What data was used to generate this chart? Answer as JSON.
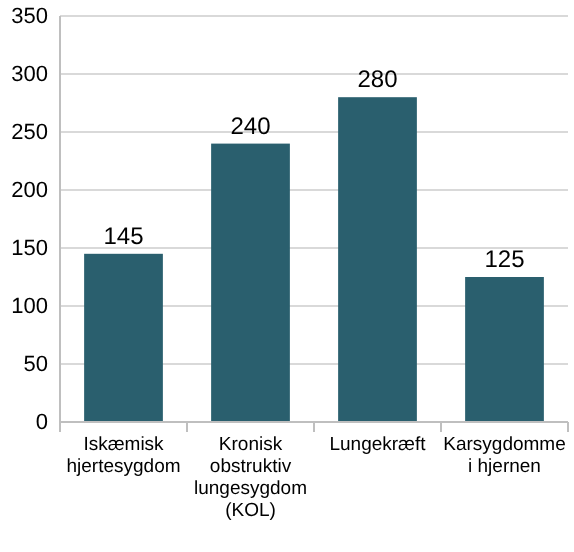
{
  "chart_data": {
    "type": "bar",
    "categories": [
      "Iskæmisk hjertesygdom",
      "Kronisk obstruktiv lungesygdom (KOL)",
      "Lungekræft",
      "Karsygdomme i hjernen"
    ],
    "values": [
      145,
      240,
      280,
      125
    ],
    "color": "#2a5f6e",
    "ylim": [
      0,
      350
    ],
    "yticks": [
      0,
      50,
      100,
      150,
      200,
      250,
      300,
      350
    ],
    "grid": "y",
    "data_labels": true
  }
}
